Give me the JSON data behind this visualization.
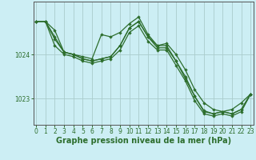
{
  "background_color": "#cceef4",
  "grid_color": "#aacccc",
  "line_color": "#2d6e2d",
  "marker_color": "#2d6e2d",
  "xlabel": "Graphe pression niveau de la mer (hPa)",
  "xlabel_fontsize": 7.0,
  "tick_fontsize": 5.5,
  "ylim": [
    1022.4,
    1025.2
  ],
  "yticks": [
    1023,
    1024
  ],
  "xlim": [
    -0.3,
    23.3
  ],
  "xticks": [
    0,
    1,
    2,
    3,
    4,
    5,
    6,
    7,
    8,
    9,
    10,
    11,
    12,
    13,
    14,
    15,
    16,
    17,
    18,
    19,
    20,
    21,
    22,
    23
  ],
  "series": [
    [
      1024.75,
      1024.75,
      1024.55,
      1024.05,
      1024.0,
      1023.95,
      1023.9,
      1024.45,
      1024.4,
      1024.5,
      1024.7,
      1024.85,
      1024.45,
      1024.2,
      1024.25,
      1024.0,
      1023.65,
      1023.2,
      1022.9,
      1022.75,
      1022.7,
      1022.75,
      1022.9,
      1023.1
    ],
    [
      1024.75,
      1024.75,
      1024.35,
      1024.05,
      1024.0,
      1023.9,
      1023.85,
      1023.9,
      1023.95,
      1024.2,
      1024.6,
      1024.75,
      1024.4,
      1024.2,
      1024.2,
      1023.85,
      1023.45,
      1023.05,
      1022.7,
      1022.65,
      1022.7,
      1022.65,
      1022.75,
      1023.1
    ],
    [
      1024.75,
      1024.75,
      1024.4,
      1024.05,
      1024.0,
      1023.9,
      1023.85,
      1023.9,
      1023.95,
      1024.2,
      1024.6,
      1024.75,
      1024.4,
      1024.15,
      1024.15,
      1023.85,
      1023.5,
      1023.05,
      1022.72,
      1022.65,
      1022.7,
      1022.65,
      1022.75,
      1023.1
    ],
    [
      1024.75,
      1024.75,
      1024.2,
      1024.0,
      1023.95,
      1023.85,
      1023.8,
      1023.85,
      1023.9,
      1024.1,
      1024.5,
      1024.65,
      1024.3,
      1024.1,
      1024.1,
      1023.75,
      1023.4,
      1022.95,
      1022.65,
      1022.6,
      1022.65,
      1022.6,
      1022.7,
      1023.1
    ]
  ]
}
